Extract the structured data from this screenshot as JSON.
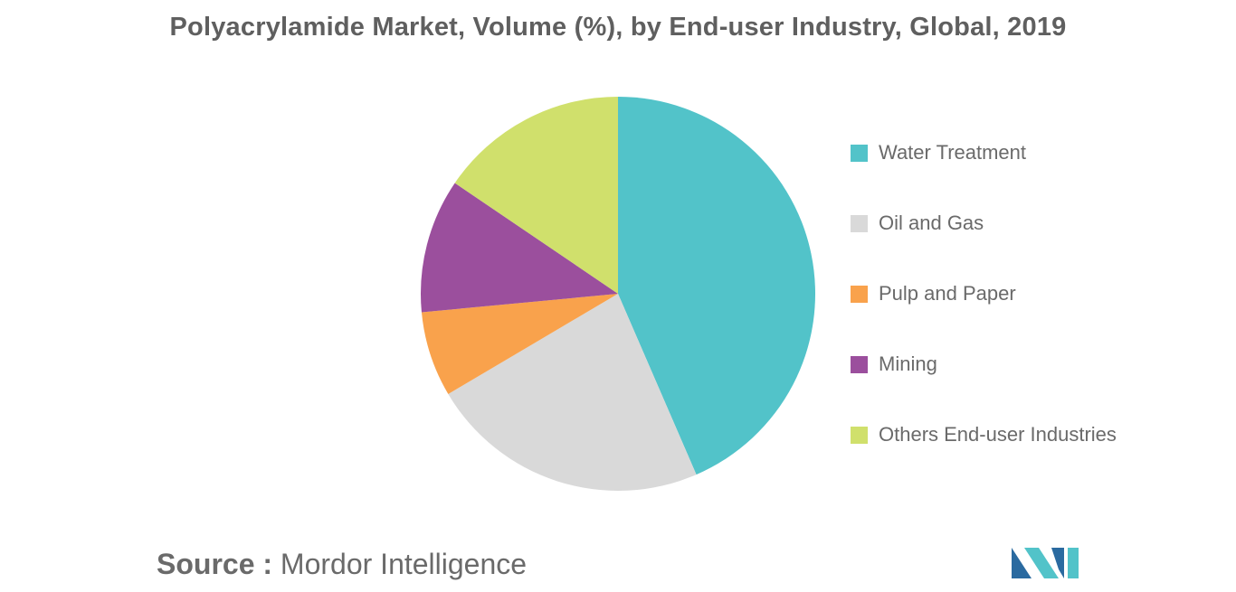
{
  "chart_data": {
    "type": "pie",
    "title": "Polyacrylamide Market, Volume (%), by End-user Industry, Global, 2019",
    "slices": [
      {
        "label": "Water Treatment",
        "value": 43.5,
        "color": "#52c3c9"
      },
      {
        "label": "Oil and Gas",
        "value": 23,
        "color": "#d9d9d9"
      },
      {
        "label": "Pulp and Paper",
        "value": 7,
        "color": "#f9a24c"
      },
      {
        "label": "Mining",
        "value": 11,
        "color": "#9b4f9d"
      },
      {
        "label": "Others End-user Industries",
        "value": 15.5,
        "color": "#d0e06c"
      }
    ],
    "legend_position": "right",
    "start_angle": "top",
    "direction": "clockwise"
  },
  "source": {
    "prefix": "Source :",
    "name": "Mordor Intelligence"
  },
  "logo": {
    "name": "mordor-intelligence-logo",
    "colors": [
      "#2a6aa0",
      "#52c3c9"
    ]
  }
}
